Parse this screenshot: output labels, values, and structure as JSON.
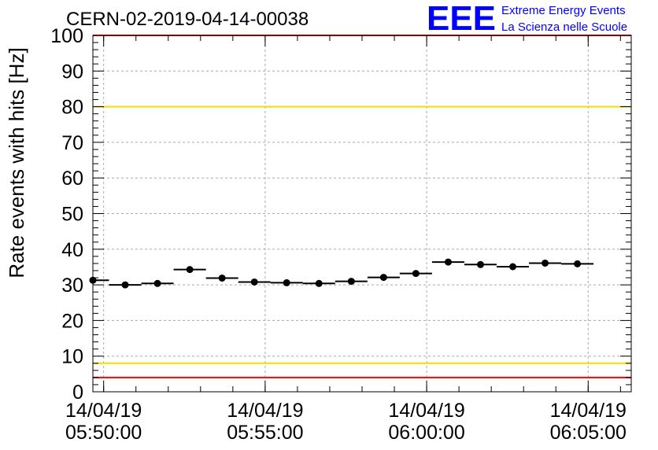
{
  "header": {
    "run_title": "CERN-02-2019-04-14-00038",
    "logo_text": "EEE",
    "logo_line1": "Extreme Energy Events",
    "logo_line2": "La Scienza nelle Scuole"
  },
  "colors": {
    "data": "#000000",
    "frame": "#000000",
    "grid": "#aaaaaa",
    "threshold_outer": "#ff0000",
    "threshold_inner": "#ffd700",
    "logo": "#0000ff"
  },
  "chart_data": {
    "type": "scatter",
    "title": "CERN-02-2019-04-14-00038",
    "xlabel": "",
    "ylabel": "Rate events with hits [Hz]",
    "ylim": [
      0,
      100
    ],
    "yticks": [
      0,
      10,
      20,
      30,
      40,
      50,
      60,
      70,
      80,
      90,
      100
    ],
    "xlim": [
      "2019-04-14T05:49:40",
      "2019-04-14T06:06:20"
    ],
    "xticks": [
      {
        "date": "14/04/19",
        "time": "05:50:00",
        "t": "2019-04-14T05:50:00"
      },
      {
        "date": "14/04/19",
        "time": "05:55:00",
        "t": "2019-04-14T05:55:00"
      },
      {
        "date": "14/04/19",
        "time": "06:00:00",
        "t": "2019-04-14T06:00:00"
      },
      {
        "date": "14/04/19",
        "time": "06:05:00",
        "t": "2019-04-14T06:05:00"
      }
    ],
    "grid": true,
    "horizontal_lines": [
      {
        "y": 100,
        "color": "#ff0000"
      },
      {
        "y": 80,
        "color": "#ffd700"
      },
      {
        "y": 8,
        "color": "#ffd700"
      },
      {
        "y": 4,
        "color": "#ff0000"
      }
    ],
    "series": [
      {
        "points": [
          {
            "t": "2019-04-14T05:49:40",
            "y": 31.3
          },
          {
            "t": "2019-04-14T05:50:40",
            "y": 30.0
          },
          {
            "t": "2019-04-14T05:51:40",
            "y": 30.4
          },
          {
            "t": "2019-04-14T05:52:40",
            "y": 34.3
          },
          {
            "t": "2019-04-14T05:53:40",
            "y": 31.9
          },
          {
            "t": "2019-04-14T05:54:40",
            "y": 30.8
          },
          {
            "t": "2019-04-14T05:55:40",
            "y": 30.6
          },
          {
            "t": "2019-04-14T05:56:40",
            "y": 30.4
          },
          {
            "t": "2019-04-14T05:57:40",
            "y": 31.0
          },
          {
            "t": "2019-04-14T05:58:40",
            "y": 32.1
          },
          {
            "t": "2019-04-14T05:59:40",
            "y": 33.2
          },
          {
            "t": "2019-04-14T06:00:40",
            "y": 36.4
          },
          {
            "t": "2019-04-14T06:01:40",
            "y": 35.7
          },
          {
            "t": "2019-04-14T06:02:40",
            "y": 35.1
          },
          {
            "t": "2019-04-14T06:03:40",
            "y": 36.1
          },
          {
            "t": "2019-04-14T06:04:40",
            "y": 35.9
          }
        ],
        "bin_width_seconds": 60
      }
    ]
  }
}
